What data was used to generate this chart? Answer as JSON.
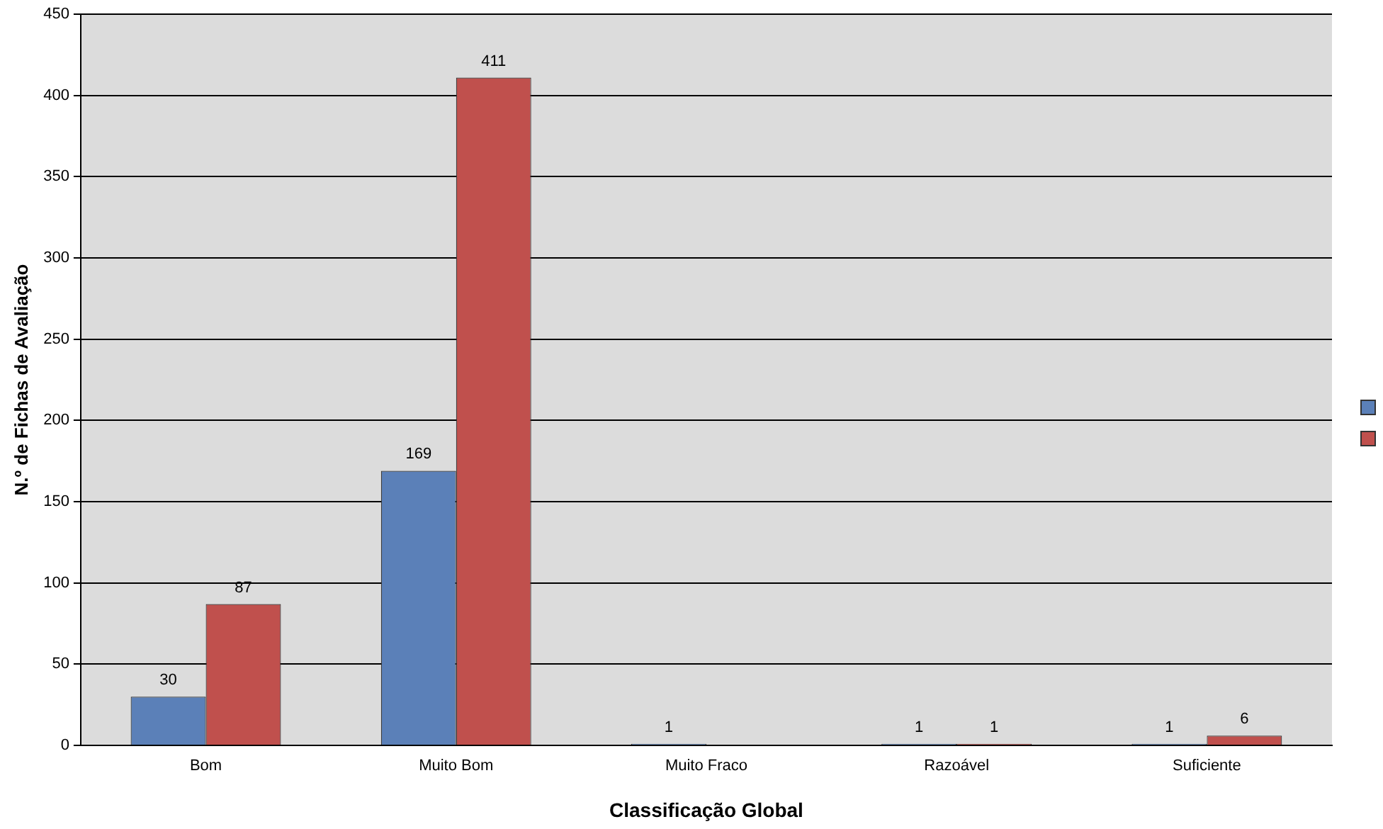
{
  "chart_data": {
    "type": "bar",
    "xlabel": "Classificação Global",
    "ylabel": "N.º de Fichas de Avaliação",
    "categories": [
      "Bom",
      "Muito Bom",
      "Muito Fraco",
      "Razoável",
      "Suficiente"
    ],
    "series": [
      {
        "color": "#5b80b8",
        "values": [
          30,
          169,
          1,
          1,
          1
        ]
      },
      {
        "color": "#c0504d",
        "values": [
          87,
          411,
          null,
          1,
          6
        ]
      }
    ],
    "ylim": [
      0,
      450
    ],
    "yticks": [
      0,
      50,
      100,
      150,
      200,
      250,
      300,
      350,
      400,
      450
    ],
    "grid": "y",
    "data_labels": true
  }
}
